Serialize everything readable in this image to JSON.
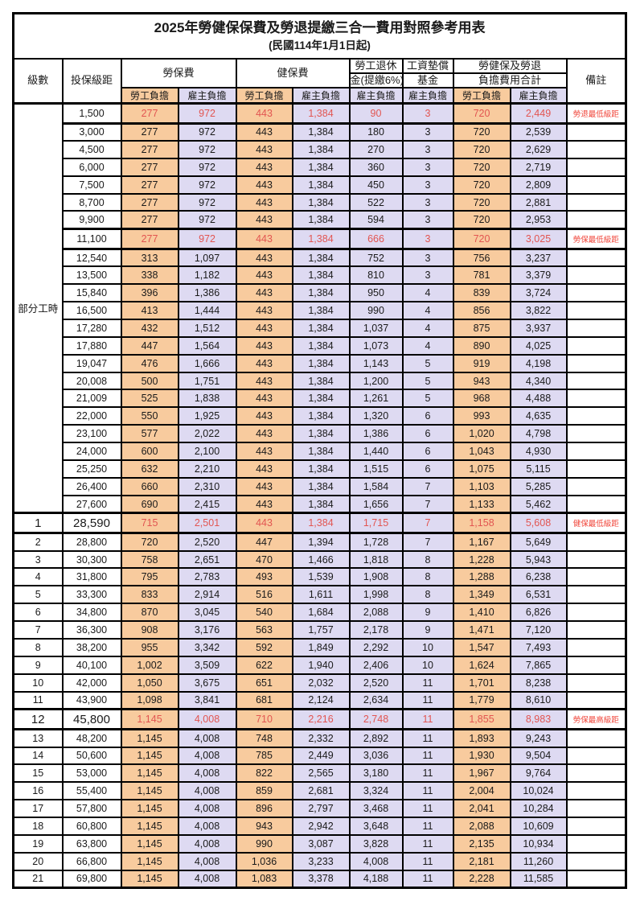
{
  "title": "2025年勞健保保費及勞退提繳三合一費用對照參考用表",
  "subtitle": "(民國114年1月1日起)",
  "columns": {
    "level": "級數",
    "bracket": "投保級距",
    "labor_ins": "勞保費",
    "health_ins": "健保費",
    "pension_line1": "勞工退休",
    "pension_line2": "金(提繳6%)",
    "wage_fund_line1": "工資墊償",
    "wage_fund_line2": "基金",
    "total_line1": "勞健保及勞退",
    "total_line2": "負擔費用合計",
    "remark": "備註",
    "employee_share": "勞工負擔",
    "employer_share": "雇主負擔"
  },
  "part_time_label": "部分工時",
  "part_time_rowspan": 23,
  "colors": {
    "employee_col_bg": "#f8cb9e",
    "employer_col_bg": "#dedaf2",
    "highlight_value_red": "#e25551",
    "highlight_remark_red": "#f04438",
    "border_black": "#000000"
  },
  "rows": [
    {
      "level": "",
      "bracket": "1,500",
      "values": [
        "277",
        "972",
        "443",
        "1,384",
        "90",
        "3",
        "720",
        "2,449"
      ],
      "remark": "勞退最低級距",
      "highlight": true
    },
    {
      "level": "",
      "bracket": "3,000",
      "values": [
        "277",
        "972",
        "443",
        "1,384",
        "180",
        "3",
        "720",
        "2,539"
      ],
      "remark": ""
    },
    {
      "level": "",
      "bracket": "4,500",
      "values": [
        "277",
        "972",
        "443",
        "1,384",
        "270",
        "3",
        "720",
        "2,629"
      ],
      "remark": ""
    },
    {
      "level": "",
      "bracket": "6,000",
      "values": [
        "277",
        "972",
        "443",
        "1,384",
        "360",
        "3",
        "720",
        "2,719"
      ],
      "remark": ""
    },
    {
      "level": "",
      "bracket": "7,500",
      "values": [
        "277",
        "972",
        "443",
        "1,384",
        "450",
        "3",
        "720",
        "2,809"
      ],
      "remark": ""
    },
    {
      "level": "",
      "bracket": "8,700",
      "values": [
        "277",
        "972",
        "443",
        "1,384",
        "522",
        "3",
        "720",
        "2,881"
      ],
      "remark": ""
    },
    {
      "level": "",
      "bracket": "9,900",
      "values": [
        "277",
        "972",
        "443",
        "1,384",
        "594",
        "3",
        "720",
        "2,953"
      ],
      "remark": ""
    },
    {
      "level": "",
      "bracket": "11,100",
      "values": [
        "277",
        "972",
        "443",
        "1,384",
        "666",
        "3",
        "720",
        "3,025"
      ],
      "remark": "勞保最低級距",
      "highlight": true
    },
    {
      "level": "",
      "bracket": "12,540",
      "values": [
        "313",
        "1,097",
        "443",
        "1,384",
        "752",
        "3",
        "756",
        "3,237"
      ],
      "remark": ""
    },
    {
      "level": "",
      "bracket": "13,500",
      "values": [
        "338",
        "1,182",
        "443",
        "1,384",
        "810",
        "3",
        "781",
        "3,379"
      ],
      "remark": ""
    },
    {
      "level": "",
      "bracket": "15,840",
      "values": [
        "396",
        "1,386",
        "443",
        "1,384",
        "950",
        "4",
        "839",
        "3,724"
      ],
      "remark": ""
    },
    {
      "level": "",
      "bracket": "16,500",
      "values": [
        "413",
        "1,444",
        "443",
        "1,384",
        "990",
        "4",
        "856",
        "3,822"
      ],
      "remark": ""
    },
    {
      "level": "",
      "bracket": "17,280",
      "values": [
        "432",
        "1,512",
        "443",
        "1,384",
        "1,037",
        "4",
        "875",
        "3,937"
      ],
      "remark": ""
    },
    {
      "level": "",
      "bracket": "17,880",
      "values": [
        "447",
        "1,564",
        "443",
        "1,384",
        "1,073",
        "4",
        "890",
        "4,025"
      ],
      "remark": ""
    },
    {
      "level": "",
      "bracket": "19,047",
      "values": [
        "476",
        "1,666",
        "443",
        "1,384",
        "1,143",
        "5",
        "919",
        "4,198"
      ],
      "remark": ""
    },
    {
      "level": "",
      "bracket": "20,008",
      "values": [
        "500",
        "1,751",
        "443",
        "1,384",
        "1,200",
        "5",
        "943",
        "4,340"
      ],
      "remark": ""
    },
    {
      "level": "",
      "bracket": "21,009",
      "values": [
        "525",
        "1,838",
        "443",
        "1,384",
        "1,261",
        "5",
        "968",
        "4,488"
      ],
      "remark": ""
    },
    {
      "level": "",
      "bracket": "22,000",
      "values": [
        "550",
        "1,925",
        "443",
        "1,384",
        "1,320",
        "6",
        "993",
        "4,635"
      ],
      "remark": ""
    },
    {
      "level": "",
      "bracket": "23,100",
      "values": [
        "577",
        "2,022",
        "443",
        "1,384",
        "1,386",
        "6",
        "1,020",
        "4,798"
      ],
      "remark": ""
    },
    {
      "level": "",
      "bracket": "24,000",
      "values": [
        "600",
        "2,100",
        "443",
        "1,384",
        "1,440",
        "6",
        "1,043",
        "4,930"
      ],
      "remark": ""
    },
    {
      "level": "",
      "bracket": "25,250",
      "values": [
        "632",
        "2,210",
        "443",
        "1,384",
        "1,515",
        "6",
        "1,075",
        "5,115"
      ],
      "remark": ""
    },
    {
      "level": "",
      "bracket": "26,400",
      "values": [
        "660",
        "2,310",
        "443",
        "1,384",
        "1,584",
        "7",
        "1,103",
        "5,285"
      ],
      "remark": ""
    },
    {
      "level": "",
      "bracket": "27,600",
      "values": [
        "690",
        "2,415",
        "443",
        "1,384",
        "1,656",
        "7",
        "1,133",
        "5,462"
      ],
      "remark": ""
    },
    {
      "level": "1",
      "bracket": "28,590",
      "values": [
        "715",
        "2,501",
        "443",
        "1,384",
        "1,715",
        "7",
        "1,158",
        "5,608"
      ],
      "remark": "健保最低級距",
      "highlight": true,
      "big": true
    },
    {
      "level": "2",
      "bracket": "28,800",
      "values": [
        "720",
        "2,520",
        "447",
        "1,394",
        "1,728",
        "7",
        "1,167",
        "5,649"
      ],
      "remark": ""
    },
    {
      "level": "3",
      "bracket": "30,300",
      "values": [
        "758",
        "2,651",
        "470",
        "1,466",
        "1,818",
        "8",
        "1,228",
        "5,943"
      ],
      "remark": ""
    },
    {
      "level": "4",
      "bracket": "31,800",
      "values": [
        "795",
        "2,783",
        "493",
        "1,539",
        "1,908",
        "8",
        "1,288",
        "6,238"
      ],
      "remark": ""
    },
    {
      "level": "5",
      "bracket": "33,300",
      "values": [
        "833",
        "2,914",
        "516",
        "1,611",
        "1,998",
        "8",
        "1,349",
        "6,531"
      ],
      "remark": ""
    },
    {
      "level": "6",
      "bracket": "34,800",
      "values": [
        "870",
        "3,045",
        "540",
        "1,684",
        "2,088",
        "9",
        "1,410",
        "6,826"
      ],
      "remark": ""
    },
    {
      "level": "7",
      "bracket": "36,300",
      "values": [
        "908",
        "3,176",
        "563",
        "1,757",
        "2,178",
        "9",
        "1,471",
        "7,120"
      ],
      "remark": ""
    },
    {
      "level": "8",
      "bracket": "38,200",
      "values": [
        "955",
        "3,342",
        "592",
        "1,849",
        "2,292",
        "10",
        "1,547",
        "7,493"
      ],
      "remark": ""
    },
    {
      "level": "9",
      "bracket": "40,100",
      "values": [
        "1,002",
        "3,509",
        "622",
        "1,940",
        "2,406",
        "10",
        "1,624",
        "7,865"
      ],
      "remark": ""
    },
    {
      "level": "10",
      "bracket": "42,000",
      "values": [
        "1,050",
        "3,675",
        "651",
        "2,032",
        "2,520",
        "11",
        "1,701",
        "8,238"
      ],
      "remark": ""
    },
    {
      "level": "11",
      "bracket": "43,900",
      "values": [
        "1,098",
        "3,841",
        "681",
        "2,124",
        "2,634",
        "11",
        "1,779",
        "8,610"
      ],
      "remark": ""
    },
    {
      "level": "12",
      "bracket": "45,800",
      "values": [
        "1,145",
        "4,008",
        "710",
        "2,216",
        "2,748",
        "11",
        "1,855",
        "8,983"
      ],
      "remark": "勞保最高級距",
      "highlight": true,
      "big": true
    },
    {
      "level": "13",
      "bracket": "48,200",
      "values": [
        "1,145",
        "4,008",
        "748",
        "2,332",
        "2,892",
        "11",
        "1,893",
        "9,243"
      ],
      "remark": ""
    },
    {
      "level": "14",
      "bracket": "50,600",
      "values": [
        "1,145",
        "4,008",
        "785",
        "2,449",
        "3,036",
        "11",
        "1,930",
        "9,504"
      ],
      "remark": ""
    },
    {
      "level": "15",
      "bracket": "53,000",
      "values": [
        "1,145",
        "4,008",
        "822",
        "2,565",
        "3,180",
        "11",
        "1,967",
        "9,764"
      ],
      "remark": ""
    },
    {
      "level": "16",
      "bracket": "55,400",
      "values": [
        "1,145",
        "4,008",
        "859",
        "2,681",
        "3,324",
        "11",
        "2,004",
        "10,024"
      ],
      "remark": ""
    },
    {
      "level": "17",
      "bracket": "57,800",
      "values": [
        "1,145",
        "4,008",
        "896",
        "2,797",
        "3,468",
        "11",
        "2,041",
        "10,284"
      ],
      "remark": ""
    },
    {
      "level": "18",
      "bracket": "60,800",
      "values": [
        "1,145",
        "4,008",
        "943",
        "2,942",
        "3,648",
        "11",
        "2,088",
        "10,609"
      ],
      "remark": ""
    },
    {
      "level": "19",
      "bracket": "63,800",
      "values": [
        "1,145",
        "4,008",
        "990",
        "3,087",
        "3,828",
        "11",
        "2,135",
        "10,934"
      ],
      "remark": ""
    },
    {
      "level": "20",
      "bracket": "66,800",
      "values": [
        "1,145",
        "4,008",
        "1,036",
        "3,233",
        "4,008",
        "11",
        "2,181",
        "11,260"
      ],
      "remark": ""
    },
    {
      "level": "21",
      "bracket": "69,800",
      "values": [
        "1,145",
        "4,008",
        "1,083",
        "3,378",
        "4,188",
        "11",
        "2,228",
        "11,585"
      ],
      "remark": ""
    }
  ]
}
